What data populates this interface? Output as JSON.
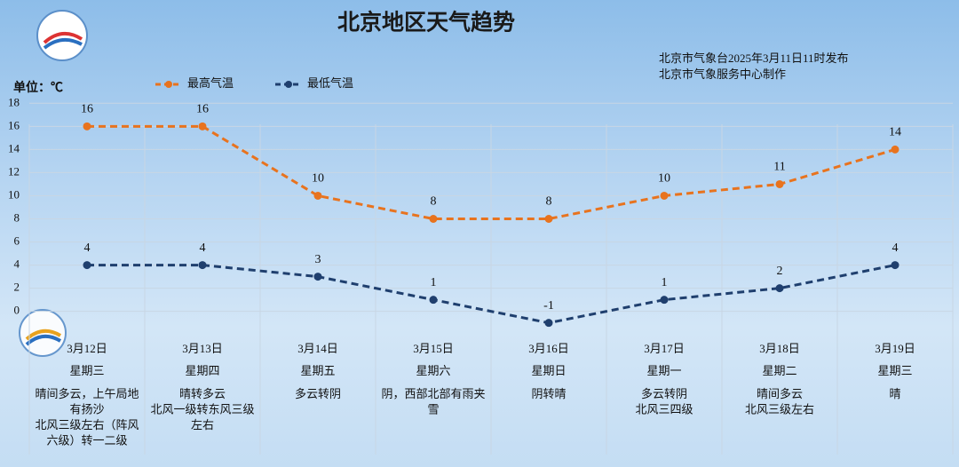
{
  "chart_data": {
    "type": "line",
    "title": "北京地区天气趋势",
    "publisher": [
      "北京市气象台2025年3月11日11时发布",
      "北京市气象服务中心制作"
    ],
    "unit_label": "单位：℃",
    "categories": [
      "3月12日",
      "3月13日",
      "3月14日",
      "3月15日",
      "3月16日",
      "3月17日",
      "3月18日",
      "3月19日"
    ],
    "weekdays": [
      "星期三",
      "星期四",
      "星期五",
      "星期六",
      "星期日",
      "星期一",
      "星期二",
      "星期三"
    ],
    "descriptions": [
      [
        "晴间多云，上午局地",
        "有扬沙",
        "北风三级左右（阵风",
        "六级）转一二级"
      ],
      [
        "晴转多云",
        "北风一级转东风三级",
        "左右"
      ],
      [
        "多云转阴"
      ],
      [
        "阴，西部北部有雨夹",
        "雪"
      ],
      [
        "阴转晴"
      ],
      [
        "多云转阴",
        "北风三四级"
      ],
      [
        "晴间多云",
        "北风三级左右"
      ],
      [
        "晴"
      ]
    ],
    "series": [
      {
        "name": "最高气温",
        "color": "#e8731e",
        "values": [
          16,
          16,
          10,
          8,
          8,
          10,
          11,
          14
        ]
      },
      {
        "name": "最低气温",
        "color": "#1f3f6e",
        "values": [
          4,
          4,
          3,
          1,
          -1,
          1,
          2,
          4
        ]
      }
    ],
    "ylim": [
      -2,
      18
    ],
    "yticks": [
      0,
      2,
      4,
      6,
      8,
      10,
      12,
      14,
      16,
      18
    ],
    "grid": true
  }
}
